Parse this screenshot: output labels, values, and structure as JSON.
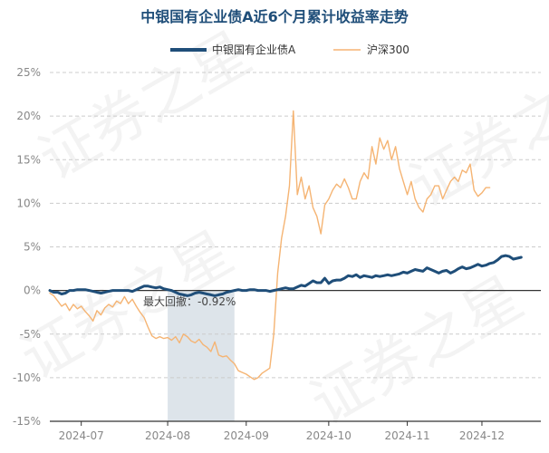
{
  "chart_data": {
    "type": "line",
    "title": "中银国有企业债A近6个月累计收益率走势",
    "watermark": "证券之星",
    "x_tick_labels": [
      "2024-07",
      "2024-08",
      "2024-09",
      "2024-10",
      "2024-11",
      "2024-12"
    ],
    "y_tick_labels": [
      "25%",
      "20%",
      "15%",
      "10%",
      "5%",
      "0%",
      "-5%",
      "-10%",
      "-15%"
    ],
    "ylim": [
      -15,
      25
    ],
    "xlim": [
      0,
      125
    ],
    "grid": "horizontal dashed",
    "legend_position": "top-center",
    "series": [
      {
        "name": "中银国有企业债A",
        "color": "#1f4e79",
        "values": [
          0,
          -0.2,
          -0.2,
          -0.4,
          -0.3,
          0,
          0,
          0.1,
          0.1,
          0.1,
          0,
          -0.1,
          -0.2,
          -0.3,
          -0.2,
          -0.1,
          0,
          0,
          0,
          0,
          0,
          -0.1,
          0.1,
          0.3,
          0.5,
          0.5,
          0.4,
          0.3,
          0.4,
          0.2,
          0.1,
          0,
          -0.2,
          -0.4,
          -0.5,
          -0.6,
          -0.5,
          -0.3,
          -0.2,
          -0.3,
          -0.4,
          -0.5,
          -0.6,
          -0.5,
          -0.4,
          -0.2,
          -0.1,
          0,
          0.1,
          0,
          0,
          0.1,
          0.1,
          0,
          0,
          0,
          -0.1,
          0,
          0.1,
          0.2,
          0.3,
          0.2,
          0.2,
          0.4,
          0.6,
          0.5,
          0.8,
          1.1,
          0.9,
          0.9,
          1.4,
          0.8,
          1.1,
          1.2,
          1.2,
          1.4,
          1.7,
          1.6,
          1.8,
          1.5,
          1.7,
          1.6,
          1.5,
          1.7,
          1.6,
          1.7,
          1.8,
          1.7,
          1.8,
          1.9,
          2.1,
          2.0,
          2.2,
          2.4,
          2.3,
          2.2,
          2.6,
          2.4,
          2.2,
          2.0,
          2.2,
          2.3,
          2.0,
          2.2,
          2.5,
          2.7,
          2.5,
          2.6,
          2.8,
          3.0,
          2.8,
          2.9,
          3.1,
          3.2,
          3.5,
          3.9,
          4.0,
          3.9,
          3.6,
          3.7,
          3.8
        ],
        "x": [
          0,
          1,
          2,
          3,
          4,
          5,
          6,
          7,
          8,
          9,
          10,
          11,
          12,
          13,
          14,
          15,
          16,
          17,
          18,
          19,
          20,
          21,
          22,
          23,
          24,
          25,
          26,
          27,
          28,
          29,
          30,
          31,
          32,
          33,
          34,
          35,
          36,
          37,
          38,
          39,
          40,
          41,
          42,
          43,
          44,
          45,
          46,
          47,
          48,
          49,
          50,
          51,
          52,
          53,
          54,
          55,
          56,
          57,
          58,
          59,
          60,
          61,
          62,
          63,
          64,
          65,
          66,
          67,
          68,
          69,
          70,
          71,
          72,
          73,
          74,
          75,
          76,
          77,
          78,
          79,
          80,
          81,
          82,
          83,
          84,
          85,
          86,
          87,
          88,
          89,
          90,
          91,
          92,
          93,
          94,
          95,
          96,
          97,
          98,
          99,
          100,
          101,
          102,
          103,
          104,
          105,
          106,
          107,
          108,
          109,
          110,
          111,
          112,
          113,
          114,
          115,
          116,
          117,
          118,
          119,
          120
        ]
      },
      {
        "name": "沪深300",
        "color": "#f5b473",
        "values": [
          -0.3,
          -0.6,
          -1.2,
          -1.8,
          -1.5,
          -2.3,
          -1.6,
          -2.1,
          -1.8,
          -2.4,
          -2.9,
          -3.5,
          -2.3,
          -2.8,
          -2.0,
          -1.6,
          -1.9,
          -1.2,
          -1.5,
          -0.7,
          -1.5,
          -1.0,
          -1.8,
          -2.5,
          -3.1,
          -4.2,
          -5.2,
          -5.5,
          -5.3,
          -5.5,
          -5.4,
          -5.7,
          -5.3,
          -6.0,
          -5.0,
          -5.3,
          -5.8,
          -6.0,
          -5.6,
          -6.2,
          -6.5,
          -7.0,
          -5.9,
          -7.4,
          -7.6,
          -7.5,
          -8.0,
          -8.4,
          -9.2,
          -9.4,
          -9.6,
          -9.9,
          -10.2,
          -10.0,
          -9.5,
          -9.2,
          -8.9,
          -5.0,
          2.0,
          6.0,
          8.5,
          12.0,
          20.6,
          11.0,
          13.0,
          10.5,
          12.0,
          9.5,
          8.5,
          6.5,
          9.8,
          10.5,
          11.5,
          12.2,
          11.8,
          12.8,
          11.8,
          10.5,
          10.5,
          12.5,
          13.5,
          12.8,
          16.5,
          14.5,
          17.5,
          16.2,
          17.2,
          15.0,
          16.5,
          14.0,
          12.5,
          11.0,
          12.5,
          10.5,
          9.5,
          9.0,
          10.5,
          11.0,
          12.0,
          12.0,
          10.5,
          11.5,
          12.5,
          13.0,
          12.5,
          13.8,
          13.5,
          14.5,
          11.5,
          10.8,
          11.2,
          11.8,
          11.8
        ],
        "x": [
          0,
          1,
          2,
          3,
          4,
          5,
          6,
          7,
          8,
          9,
          10,
          11,
          12,
          13,
          14,
          15,
          16,
          17,
          18,
          19,
          20,
          21,
          22,
          23,
          24,
          25,
          26,
          27,
          28,
          29,
          30,
          31,
          32,
          33,
          34,
          35,
          36,
          37,
          38,
          39,
          40,
          41,
          42,
          43,
          44,
          45,
          46,
          47,
          48,
          49,
          50,
          51,
          52,
          53,
          54,
          55,
          56,
          57,
          58,
          59,
          60,
          61,
          62,
          63,
          64,
          65,
          66,
          67,
          68,
          69,
          70,
          71,
          72,
          73,
          74,
          75,
          76,
          77,
          78,
          79,
          80,
          81,
          82,
          83,
          84,
          85,
          86,
          87,
          88,
          89,
          90,
          91,
          92,
          93,
          94,
          95,
          96,
          97,
          98,
          99,
          100,
          101,
          102,
          103,
          104,
          105,
          106,
          107,
          108,
          109,
          110,
          111,
          112
        ]
      }
    ],
    "x_tick_positions": [
      8,
      30,
      50,
      71,
      91,
      110
    ],
    "drawdown": {
      "label": "最大回撤：-0.92%",
      "x_start": 30,
      "x_end": 47,
      "fill": "#d7dfe6"
    },
    "title_color": "#1f4e79",
    "grid_color": "#cccccc",
    "axis_color": "#333333"
  }
}
